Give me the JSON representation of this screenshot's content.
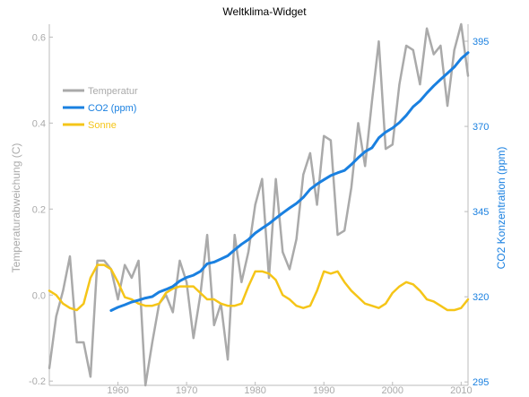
{
  "chart_data": {
    "type": "line",
    "title": "Weltklima-Widget",
    "ylabel": "Temperaturabweichung (C)",
    "y2label": "CO2 Konzentration (ppm)",
    "xlabel": "",
    "xlim": [
      1950,
      2011
    ],
    "ylim": [
      -0.21,
      0.63
    ],
    "y2lim": [
      294,
      400
    ],
    "xticks": [
      1960,
      1970,
      1980,
      1990,
      2000,
      2010
    ],
    "yticks": [
      -0.2,
      0.0,
      0.2,
      0.4,
      0.6
    ],
    "y2ticks": [
      295,
      320,
      345,
      370,
      395
    ],
    "xtick_labels": [
      "1960",
      "1970",
      "1980",
      "1990",
      "2000",
      "2010"
    ],
    "ytick_labels": [
      "-0.2",
      "0.0",
      "0.2",
      "0.4",
      "0.6"
    ],
    "y2tick_labels": [
      "295",
      "320",
      "345",
      "370",
      "395"
    ],
    "grid": false,
    "legend_position": "upper-left",
    "legend": [
      "Temperatur",
      "CO2 (ppm)",
      "Sonne"
    ],
    "series": [
      {
        "name": "Temperatur",
        "color": "#aaaaaa",
        "axis": "left",
        "x": [
          1950,
          1951,
          1952,
          1953,
          1954,
          1955,
          1956,
          1957,
          1958,
          1959,
          1960,
          1961,
          1962,
          1963,
          1964,
          1965,
          1966,
          1967,
          1968,
          1969,
          1970,
          1971,
          1972,
          1973,
          1974,
          1975,
          1976,
          1977,
          1978,
          1979,
          1980,
          1981,
          1982,
          1983,
          1984,
          1985,
          1986,
          1987,
          1988,
          1989,
          1990,
          1991,
          1992,
          1993,
          1994,
          1995,
          1996,
          1997,
          1998,
          1999,
          2000,
          2001,
          2002,
          2003,
          2004,
          2005,
          2006,
          2007,
          2008,
          2009,
          2010,
          2011
        ],
        "values": [
          -0.17,
          -0.05,
          0.01,
          0.09,
          -0.11,
          -0.11,
          -0.19,
          0.08,
          0.08,
          0.06,
          -0.01,
          0.07,
          0.04,
          0.08,
          -0.21,
          -0.11,
          -0.02,
          0.0,
          -0.04,
          0.08,
          0.03,
          -0.1,
          0.0,
          0.14,
          -0.07,
          -0.02,
          -0.15,
          0.14,
          0.03,
          0.1,
          0.21,
          0.27,
          0.04,
          0.27,
          0.1,
          0.06,
          0.13,
          0.28,
          0.33,
          0.21,
          0.37,
          0.36,
          0.14,
          0.15,
          0.25,
          0.4,
          0.3,
          0.45,
          0.59,
          0.34,
          0.35,
          0.49,
          0.58,
          0.57,
          0.49,
          0.62,
          0.56,
          0.58,
          0.44,
          0.57,
          0.63,
          0.51
        ]
      },
      {
        "name": "CO2 (ppm)",
        "color": "#1a80e0",
        "axis": "right",
        "x": [
          1959,
          1960,
          1961,
          1962,
          1963,
          1964,
          1965,
          1966,
          1967,
          1968,
          1969,
          1970,
          1971,
          1972,
          1973,
          1974,
          1975,
          1976,
          1977,
          1978,
          1979,
          1980,
          1981,
          1982,
          1983,
          1984,
          1985,
          1986,
          1987,
          1988,
          1989,
          1990,
          1991,
          1992,
          1993,
          1994,
          1995,
          1996,
          1997,
          1998,
          1999,
          2000,
          2001,
          2002,
          2003,
          2004,
          2005,
          2006,
          2007,
          2008,
          2009,
          2010,
          2011
        ],
        "values": [
          315.97,
          316.91,
          317.64,
          318.45,
          318.99,
          319.62,
          320.04,
          321.38,
          322.16,
          323.04,
          324.62,
          325.68,
          326.32,
          327.45,
          329.68,
          330.18,
          331.08,
          332.05,
          333.78,
          335.41,
          336.78,
          338.68,
          340.1,
          341.44,
          343.03,
          344.58,
          346.04,
          347.39,
          349.16,
          351.56,
          353.07,
          354.35,
          355.57,
          356.38,
          357.07,
          358.82,
          360.8,
          362.59,
          363.71,
          366.65,
          368.33,
          369.52,
          371.13,
          373.22,
          375.77,
          377.49,
          379.8,
          381.9,
          383.79,
          385.6,
          387.43,
          389.9,
          391.65
        ]
      },
      {
        "name": "Sonne",
        "color": "#f5c518",
        "axis": "left",
        "x": [
          1950,
          1951,
          1952,
          1953,
          1954,
          1955,
          1956,
          1957,
          1958,
          1959,
          1960,
          1961,
          1962,
          1963,
          1964,
          1965,
          1966,
          1967,
          1968,
          1969,
          1970,
          1971,
          1972,
          1973,
          1974,
          1975,
          1976,
          1977,
          1978,
          1979,
          1980,
          1981,
          1982,
          1983,
          1984,
          1985,
          1986,
          1987,
          1988,
          1989,
          1990,
          1991,
          1992,
          1993,
          1994,
          1995,
          1996,
          1997,
          1998,
          1999,
          2000,
          2001,
          2002,
          2003,
          2004,
          2005,
          2006,
          2007,
          2008,
          2009,
          2010,
          2011
        ],
        "values": [
          0.01,
          0.0,
          -0.02,
          -0.03,
          -0.035,
          -0.02,
          0.04,
          0.07,
          0.07,
          0.06,
          0.03,
          -0.005,
          -0.01,
          -0.02,
          -0.025,
          -0.025,
          -0.02,
          0.005,
          0.015,
          0.02,
          0.02,
          0.02,
          0.005,
          -0.01,
          -0.01,
          -0.02,
          -0.025,
          -0.025,
          -0.02,
          0.02,
          0.055,
          0.055,
          0.05,
          0.035,
          0.0,
          -0.01,
          -0.025,
          -0.03,
          -0.025,
          0.01,
          0.055,
          0.05,
          0.055,
          0.03,
          0.01,
          -0.005,
          -0.02,
          -0.025,
          -0.03,
          -0.02,
          0.005,
          0.02,
          0.03,
          0.025,
          0.01,
          -0.01,
          -0.015,
          -0.025,
          -0.035,
          -0.035,
          -0.03,
          -0.01
        ]
      }
    ]
  }
}
